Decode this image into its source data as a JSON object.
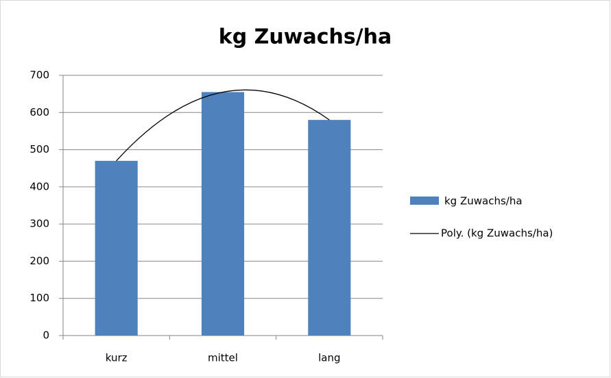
{
  "chart_data": {
    "type": "bar",
    "title": "kg Zuwachs/ha",
    "categories": [
      "kurz",
      "mittel",
      "lang"
    ],
    "series": [
      {
        "name": "kg Zuwachs/ha",
        "color": "#4f81bd",
        "values": [
          470,
          655,
          580
        ]
      }
    ],
    "trendline": {
      "name": "Poly. (kg Zuwachs/ha)",
      "color": "#000000",
      "order": 2
    },
    "ylim": [
      0,
      700
    ],
    "yticks": [
      0,
      100,
      200,
      300,
      400,
      500,
      600,
      700
    ],
    "grid": true,
    "legend": "right"
  }
}
